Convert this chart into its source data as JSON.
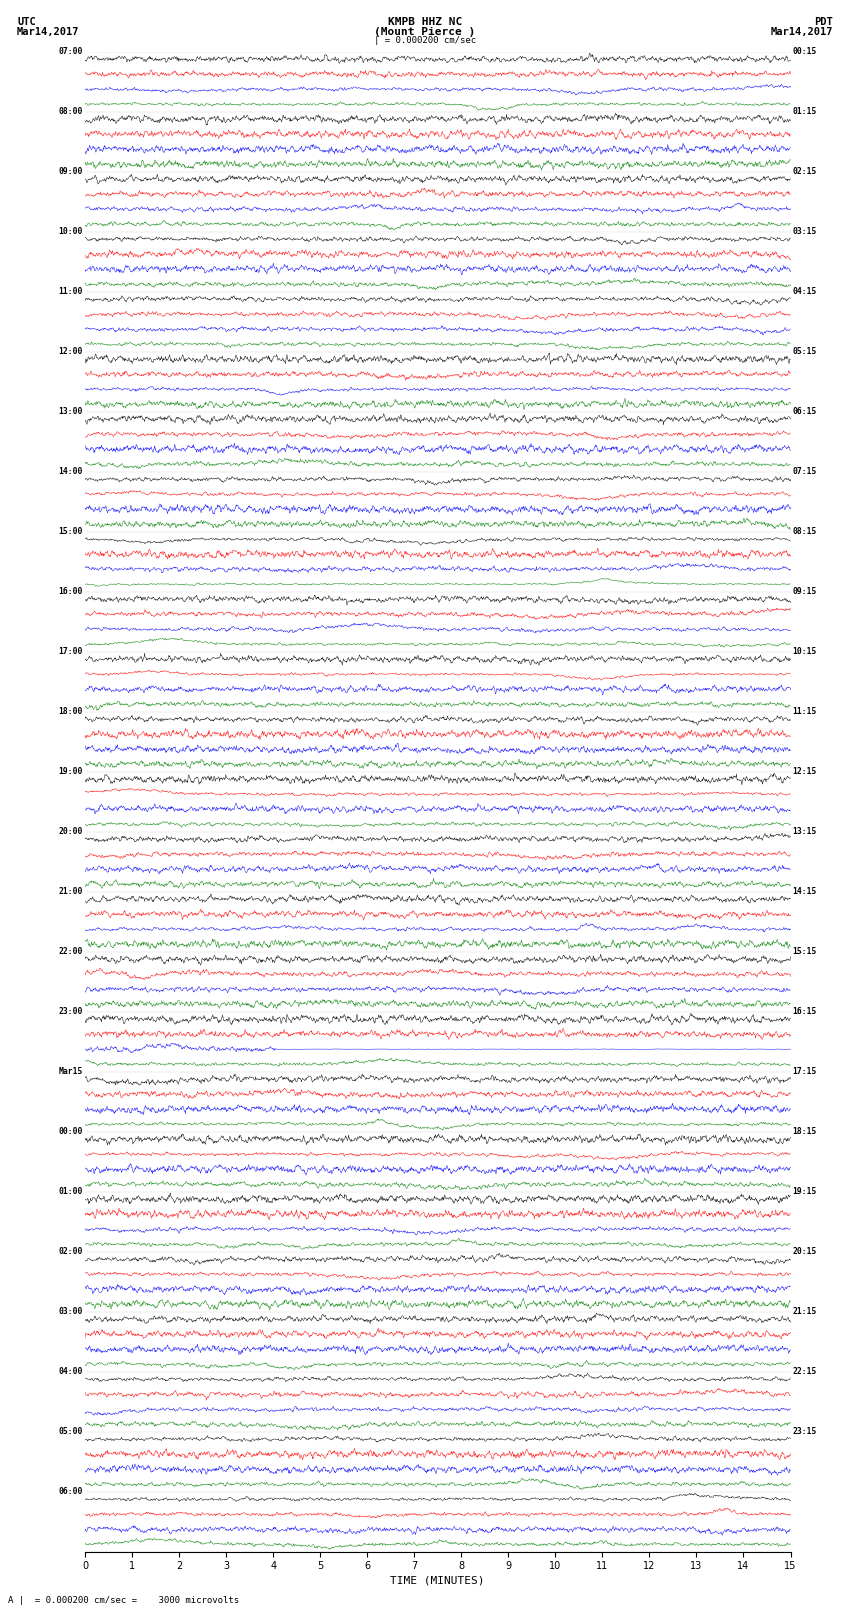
{
  "title_center_line1": "KMPB HHZ NC",
  "title_center_line2": "(Mount Pierce )",
  "title_left_line1": "UTC",
  "title_left_line2": "Mar14,2017",
  "title_right_line1": "PDT",
  "title_right_line2": "Mar14,2017",
  "scale_text": "| = 0.000200 cm/sec",
  "bottom_text": "A |  = 0.000200 cm/sec =    3000 microvolts",
  "xlabel": "TIME (MINUTES)",
  "xlim": [
    0,
    15
  ],
  "xticks": [
    0,
    1,
    2,
    3,
    4,
    5,
    6,
    7,
    8,
    9,
    10,
    11,
    12,
    13,
    14,
    15
  ],
  "colors": [
    "black",
    "red",
    "blue",
    "green"
  ],
  "num_groups": 25,
  "traces_per_group": 4,
  "big_signal_group": 16,
  "background": "white",
  "utc_labels": [
    "07:00",
    "08:00",
    "09:00",
    "10:00",
    "11:00",
    "12:00",
    "13:00",
    "14:00",
    "15:00",
    "16:00",
    "17:00",
    "18:00",
    "19:00",
    "20:00",
    "21:00",
    "22:00",
    "23:00",
    "Mar15",
    "00:00",
    "01:00",
    "02:00",
    "03:00",
    "04:00",
    "05:00",
    "06:00"
  ],
  "pdt_labels": [
    "00:15",
    "01:15",
    "02:15",
    "03:15",
    "04:15",
    "05:15",
    "06:15",
    "07:15",
    "08:15",
    "09:15",
    "10:15",
    "11:15",
    "12:15",
    "13:15",
    "14:15",
    "15:15",
    "16:15",
    "17:15",
    "18:15",
    "19:15",
    "20:15",
    "21:15",
    "22:15",
    "23:15",
    ""
  ]
}
